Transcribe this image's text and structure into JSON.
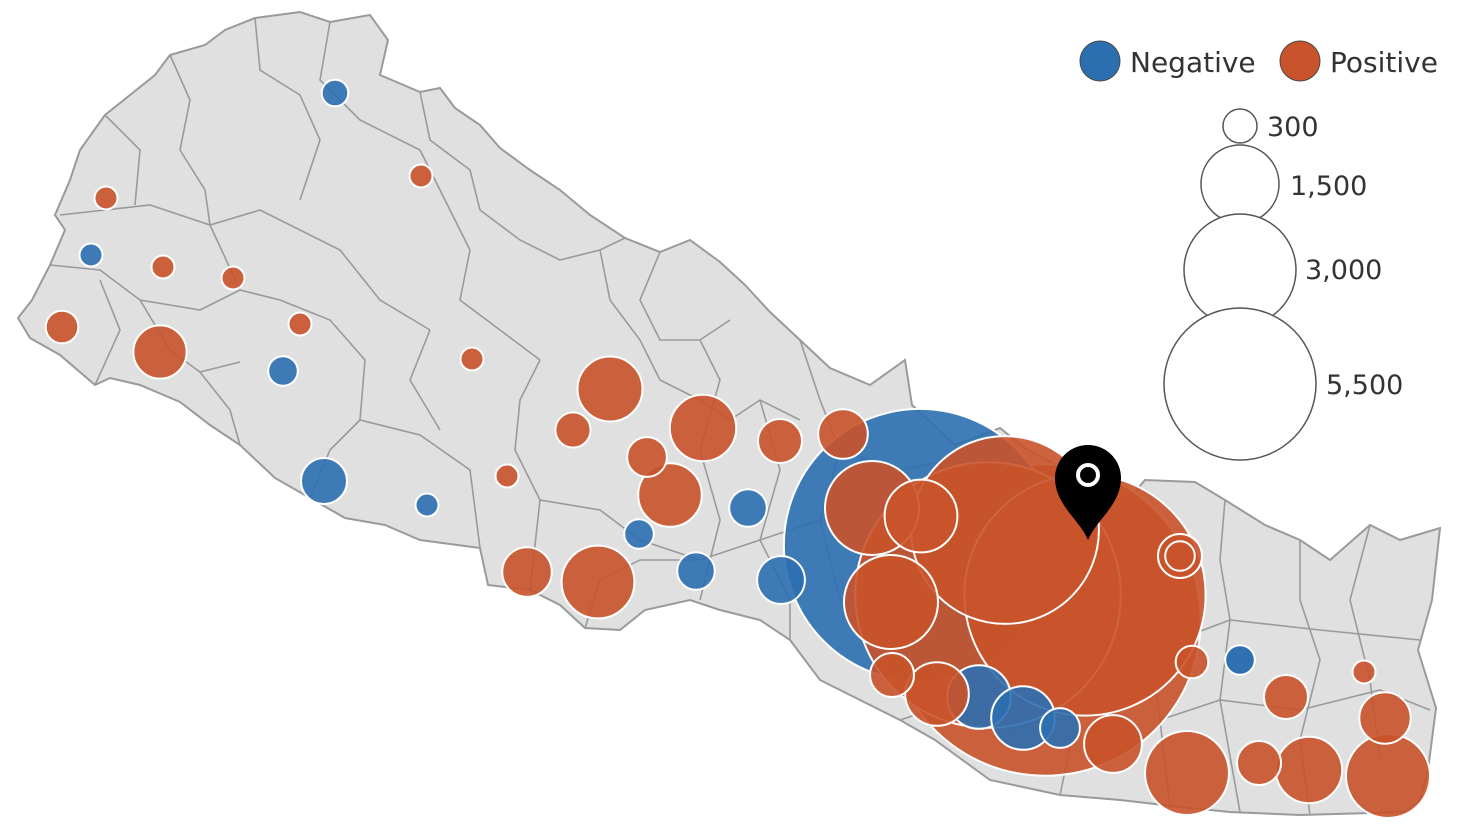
{
  "legend": {
    "items": [
      {
        "label": "Negative",
        "color": "#2c6fb0"
      },
      {
        "label": "Positive",
        "color": "#c9532a"
      }
    ],
    "size_labels": [
      "300",
      "1,500",
      "3,000",
      "5,500"
    ]
  },
  "colors": {
    "land": "#e0e0e0",
    "border": "#9a9a9a",
    "negative": "#2c6fb0",
    "positive": "#c9532a",
    "marker": "#000000"
  },
  "icons": {
    "marker": "map-pin-icon"
  },
  "points": [
    {
      "sign": "positive",
      "value": 5500
    },
    {
      "sign": "negative",
      "value": 4200
    },
    {
      "sign": "positive",
      "value": 4000
    },
    {
      "sign": "positive",
      "value": 3300
    },
    {
      "sign": "positive",
      "value": 2000
    },
    {
      "sign": "positive",
      "value": 500
    },
    {
      "sign": "positive",
      "value": 500
    },
    {
      "sign": "positive",
      "value": 400
    },
    {
      "sign": "positive",
      "value": 250
    },
    {
      "sign": "positive",
      "value": 400
    },
    {
      "sign": "negative",
      "value": 230
    },
    {
      "sign": "negative",
      "value": 230
    },
    {
      "sign": "negative",
      "value": 90
    },
    {
      "sign": "positive",
      "value": 190
    },
    {
      "sign": "positive",
      "value": 110
    },
    {
      "sign": "negative",
      "value": 50
    },
    {
      "sign": "positive",
      "value": 230
    },
    {
      "sign": "positive",
      "value": 110
    },
    {
      "sign": "positive",
      "value": 250
    },
    {
      "sign": "positive",
      "value": 300
    },
    {
      "sign": "positive",
      "value": 300
    },
    {
      "sign": "negative",
      "value": 80
    },
    {
      "sign": "positive",
      "value": 60
    },
    {
      "sign": "negative",
      "value": 80
    },
    {
      "sign": "negative",
      "value": 130
    },
    {
      "sign": "negative",
      "value": 120
    },
    {
      "sign": "positive",
      "value": 30
    },
    {
      "sign": "positive",
      "value": 30
    },
    {
      "sign": "negative",
      "value": 30
    },
    {
      "sign": "positive",
      "value": 30
    },
    {
      "sign": "positive",
      "value": 60
    },
    {
      "sign": "positive",
      "value": 160
    },
    {
      "sign": "negative",
      "value": 50
    },
    {
      "sign": "negative",
      "value": 40
    },
    {
      "sign": "positive",
      "value": 30
    },
    {
      "sign": "negative",
      "value": 30
    },
    {
      "sign": "positive",
      "value": 30
    },
    {
      "sign": "positive",
      "value": 30
    },
    {
      "sign": "positive",
      "value": 90
    },
    {
      "sign": "positive",
      "value": 140
    },
    {
      "sign": "positive",
      "value": 110
    },
    {
      "sign": "positive",
      "value": 70
    },
    {
      "sign": "positive",
      "value": 30
    },
    {
      "sign": "positive",
      "value": 230
    },
    {
      "sign": "negative",
      "value": 50
    },
    {
      "sign": "positive",
      "value": 110
    },
    {
      "sign": "positive",
      "value": 150
    },
    {
      "sign": "positive",
      "value": 30
    },
    {
      "sign": "positive",
      "value": 110
    },
    {
      "sign": "positive",
      "value": 140
    },
    {
      "sign": "positive",
      "value": 240
    },
    {
      "sign": "negative",
      "value": 50
    },
    {
      "sign": "positive",
      "value": 50
    }
  ]
}
